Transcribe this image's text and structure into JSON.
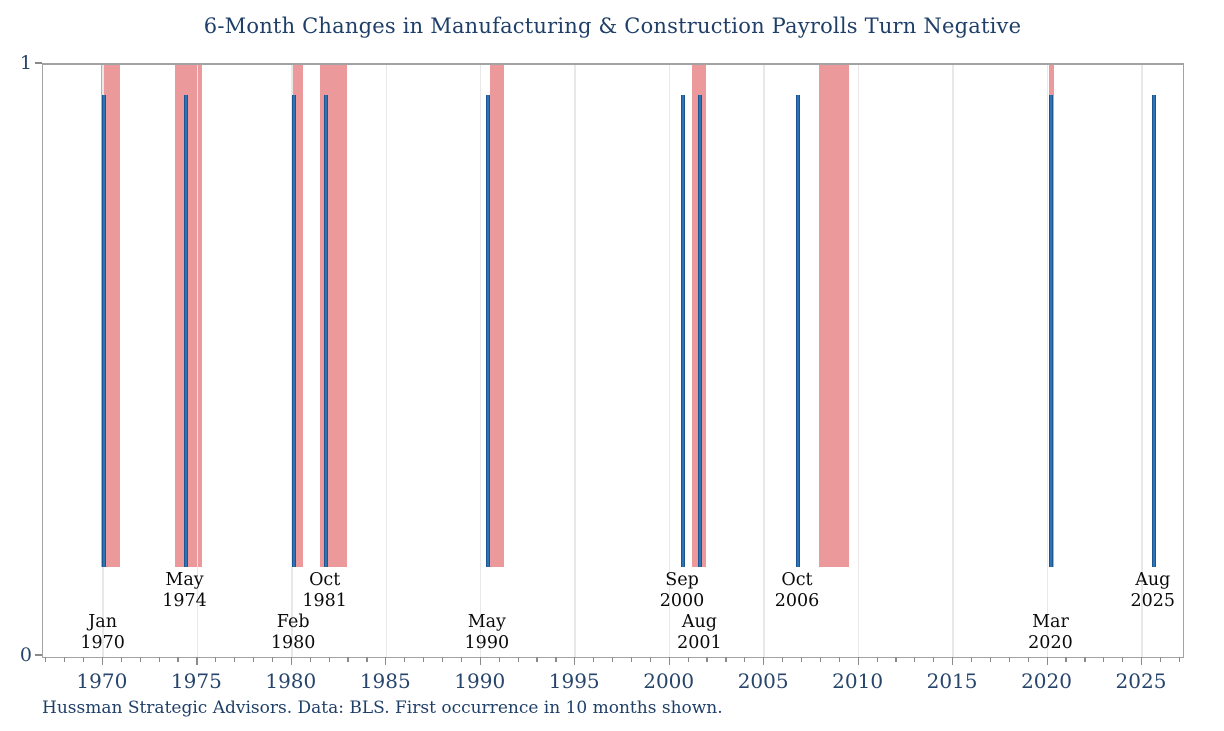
{
  "title": "6-Month Changes in Manufacturing & Construction Payrolls Turn Negative",
  "footer": "Hussman Strategic Advisors. Data: BLS. First occurrence in 10 months shown.",
  "colors": {
    "title_text": "#1F3F68",
    "axis_label_text": "#27456B",
    "event_label_text": "#0a0a0a",
    "event_line": "#2E74B5",
    "event_line_edge": "#1C5692",
    "recession_band": "#EC999C",
    "gridline": "#E8E8E8",
    "frame": "#A3A3A3",
    "tick": "#8A8A8A"
  },
  "chart_data": {
    "type": "bar",
    "title": "6-Month Changes in Manufacturing & Construction Payrolls Turn Negative",
    "xlabel": "",
    "ylabel": "",
    "xlim": [
      1966.83,
      2027.17
    ],
    "ylim": [
      0,
      1
    ],
    "grid": "vertical gridlines at labeled years, drawn over bands",
    "legend": "none",
    "x_tick_label_years": [
      1970,
      1975,
      1980,
      1985,
      1990,
      1995,
      2000,
      2005,
      2010,
      2015,
      2020,
      2025
    ],
    "x_minor_tick_step": 1,
    "y_tick_labels": [
      {
        "value": 1,
        "label": "1"
      },
      {
        "value": 0,
        "label": "0"
      }
    ],
    "event_bar": {
      "top_value": 0.949,
      "bottom_value": 0.152
    },
    "events": [
      {
        "month": "Jan",
        "year": "1970",
        "x": 1970.042,
        "row": "lower"
      },
      {
        "month": "May",
        "year": "1974",
        "x": 1974.375,
        "row": "upper"
      },
      {
        "month": "Feb",
        "year": "1980",
        "x": 1980.125,
        "row": "lower"
      },
      {
        "month": "Oct",
        "year": "1981",
        "x": 1981.792,
        "row": "upper"
      },
      {
        "month": "May",
        "year": "1990",
        "x": 1990.375,
        "row": "lower"
      },
      {
        "month": "Sep",
        "year": "2000",
        "x": 2000.708,
        "row": "upper"
      },
      {
        "month": "Aug",
        "year": "2001",
        "x": 2001.625,
        "row": "lower"
      },
      {
        "month": "Oct",
        "year": "2006",
        "x": 2006.792,
        "row": "upper"
      },
      {
        "month": "Mar",
        "year": "2020",
        "x": 2020.208,
        "row": "lower"
      },
      {
        "month": "Aug",
        "year": "2025",
        "x": 2025.625,
        "row": "upper"
      }
    ],
    "recession_band_values": {
      "top_value": 1.0,
      "bottom_value": 0.152
    },
    "recession_bands": [
      {
        "start": 1969.917,
        "end": 1970.917
      },
      {
        "start": 1973.833,
        "end": 1975.25
      },
      {
        "start": 1980.0,
        "end": 1980.583
      },
      {
        "start": 1981.5,
        "end": 1982.917
      },
      {
        "start": 1990.5,
        "end": 1991.25
      },
      {
        "start": 2001.167,
        "end": 2001.917
      },
      {
        "start": 2007.917,
        "end": 2009.5
      },
      {
        "start": 2020.083,
        "end": 2020.333
      }
    ]
  }
}
